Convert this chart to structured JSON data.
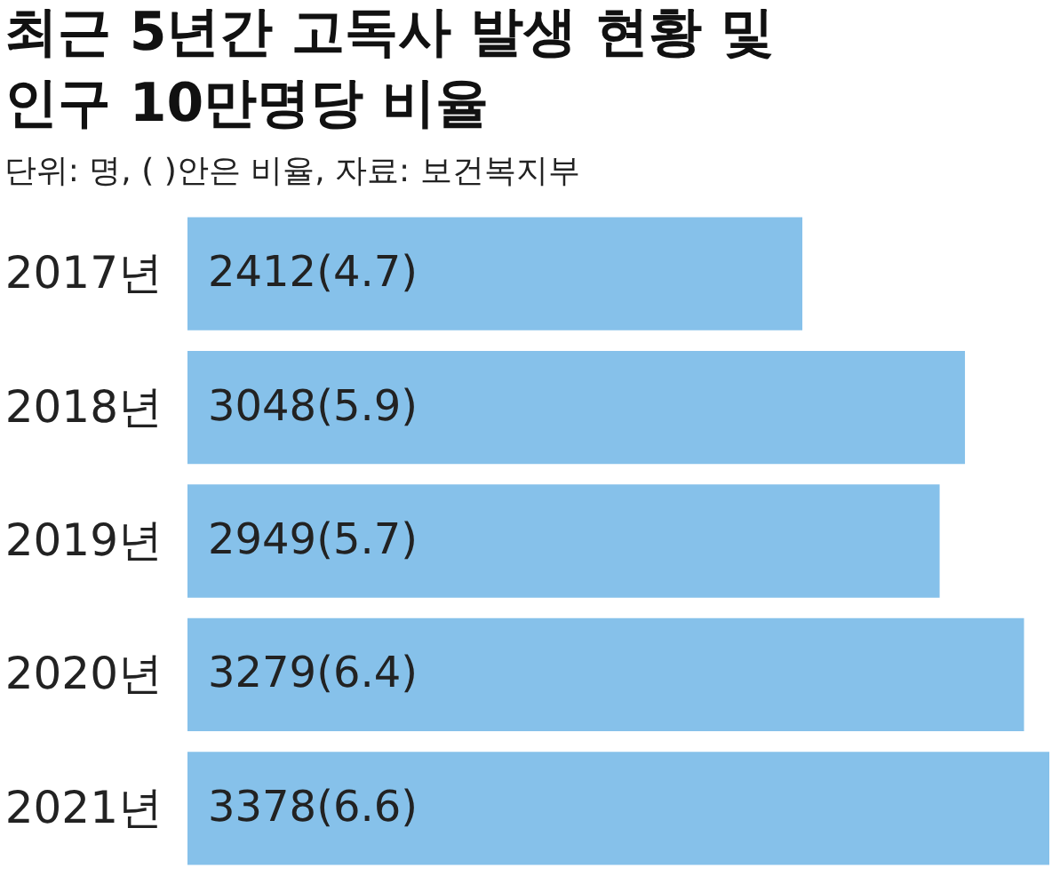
{
  "chart_data": {
    "type": "bar",
    "orientation": "horizontal",
    "title": "최근 5년간 고독사 발생 현황 및\n인구 10만명당 비율",
    "subtitle": "단위: 명, (  )안은 비율, 자료: 보건복지부",
    "categories": [
      "2017년",
      "2018년",
      "2019년",
      "2020년",
      "2021년"
    ],
    "values": [
      2412,
      3048,
      2949,
      3279,
      3378
    ],
    "value_labels": [
      "2412(4.7)",
      "3048(5.9)",
      "2949(5.7)",
      "3279(6.4)",
      "3378(6.6)"
    ],
    "color": "#86c1ea"
  }
}
